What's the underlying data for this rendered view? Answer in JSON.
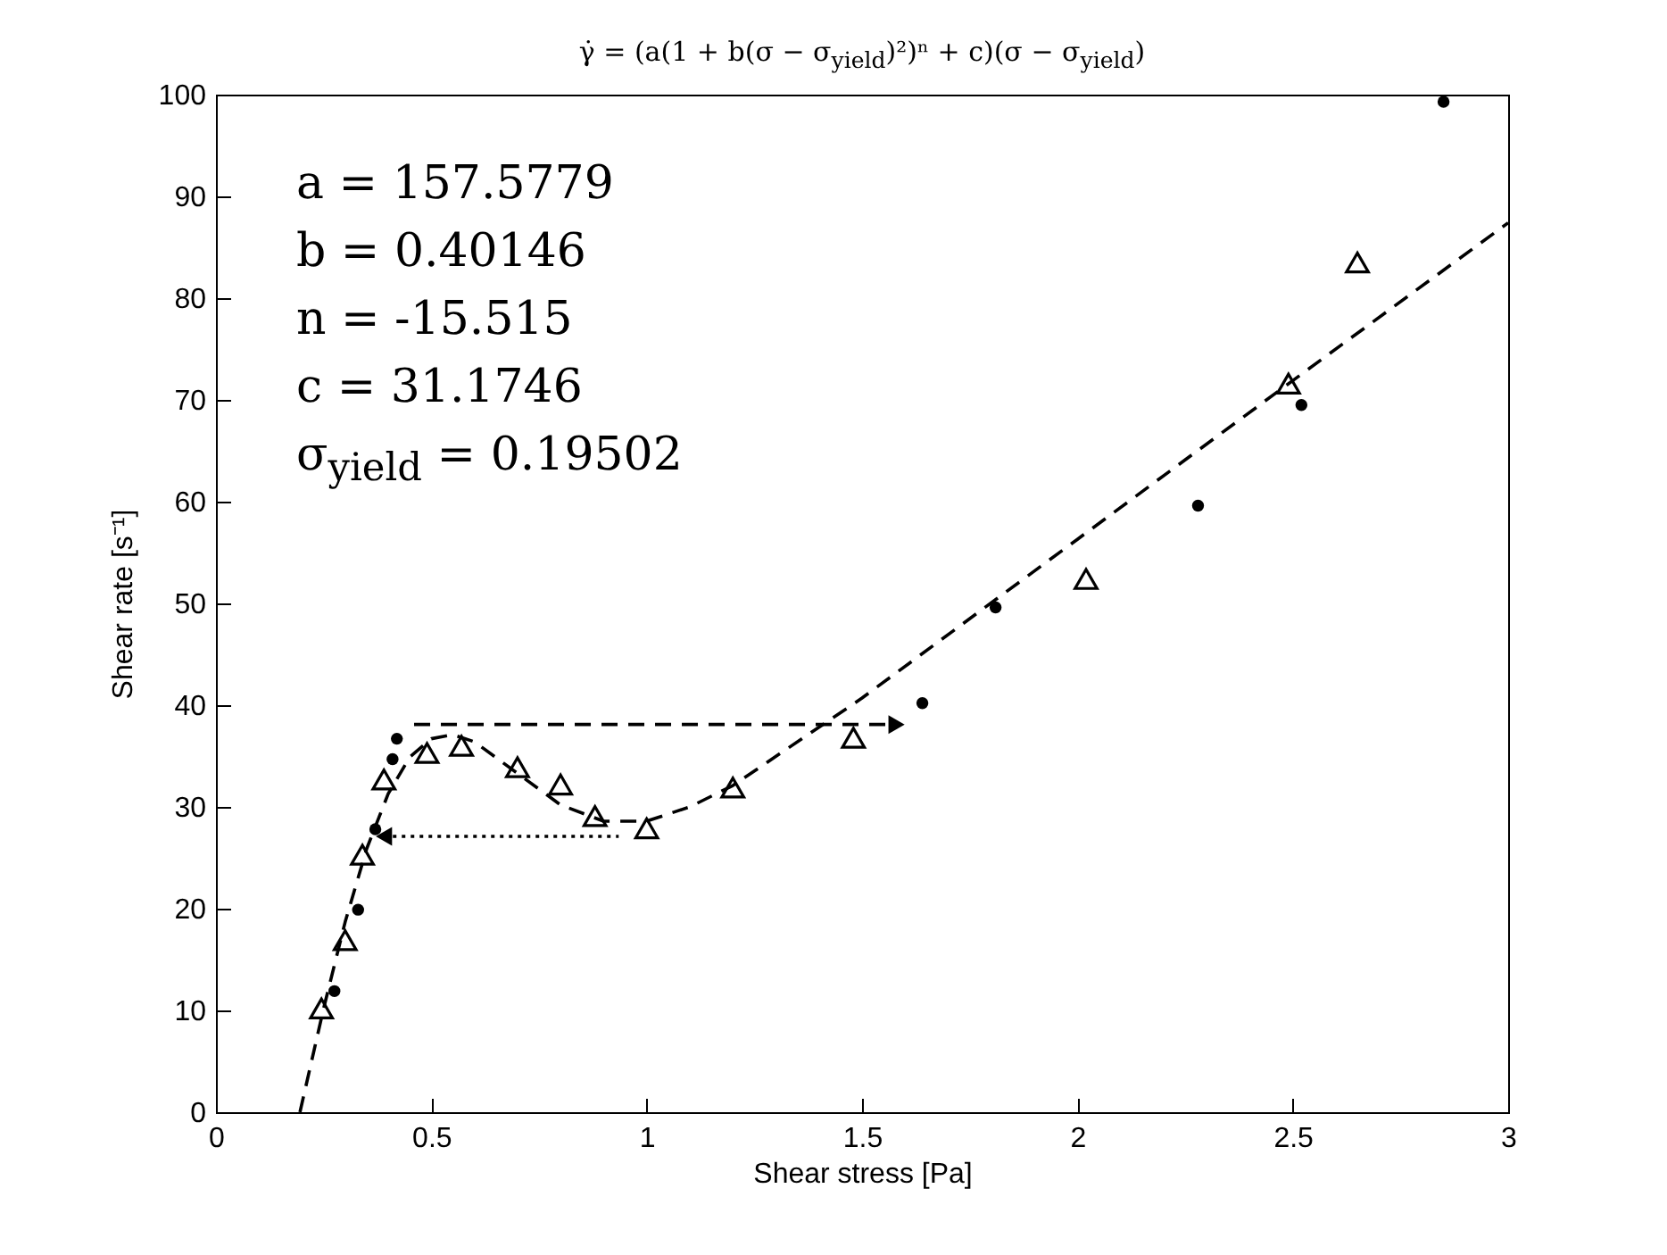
{
  "chart_data": {
    "type": "scatter",
    "title": "γ̇ = (a(1 + b(σ − σ$_{yield}$)²)ⁿ + c)(σ − σ$_{yield}$)",
    "xlabel": "Shear stress [Pa]",
    "ylabel": "Shear rate [s⁻¹]",
    "annotations": [
      "a = 157.5779",
      "b = 0.40146",
      "n = -15.515",
      "c = 31.1746",
      "σ$_{yield}$ = 0.19502"
    ],
    "xlim": [
      0,
      3
    ],
    "ylim": [
      0,
      100
    ],
    "xticks": [
      0,
      0.5,
      1,
      1.5,
      2,
      2.5,
      3
    ],
    "yticks": [
      0,
      10,
      20,
      30,
      40,
      50,
      60,
      70,
      80,
      90,
      100
    ],
    "grid": false,
    "series": [
      {
        "type": "scatter",
        "marker": "circle",
        "color": "#000000",
        "x": [
          0.275,
          0.33,
          0.37,
          0.41,
          0.42,
          1.64,
          1.81,
          2.28,
          2.52,
          2.85
        ],
        "values": [
          11.9,
          19.9,
          27.8,
          34.7,
          36.7,
          40.2,
          49.6,
          59.6,
          69.5,
          99.3
        ]
      },
      {
        "type": "scatter",
        "marker": "triangle",
        "color": "#000000",
        "x": [
          0.245,
          0.3,
          0.34,
          0.39,
          0.49,
          0.57,
          0.7,
          0.8,
          0.88,
          1.0,
          1.2,
          1.48,
          2.02,
          2.49,
          2.65
        ],
        "values": [
          10.2,
          16.9,
          25.3,
          32.7,
          35.3,
          36.0,
          33.9,
          32.2,
          29.1,
          27.9,
          31.9,
          36.8,
          52.4,
          71.6,
          83.5
        ]
      },
      {
        "type": "line",
        "line_style": "dashed",
        "color": "#000000",
        "x": [
          0.195,
          0.25,
          0.3,
          0.35,
          0.4,
          0.45,
          0.5,
          0.55,
          0.6,
          0.7,
          0.8,
          0.9,
          1.0,
          1.1,
          1.2,
          1.5,
          2,
          2.5,
          3
        ],
        "values": [
          0,
          10.2,
          18.7,
          25.9,
          31.3,
          34.9,
          36.7,
          37.1,
          36.4,
          33.3,
          30.2,
          28.6,
          28.6,
          30.0,
          32.1,
          40.7,
          56.3,
          71.9,
          87.4
        ]
      },
      {
        "type": "line",
        "line_style": "dashed",
        "color": "#000000",
        "x": [
          0.46,
          1.58
        ],
        "values": [
          38.1,
          38.1
        ]
      },
      {
        "type": "line",
        "line_style": "dotted",
        "color": "#000000",
        "x": [
          0.935,
          0.39
        ],
        "values": [
          27.1,
          27.1
        ]
      }
    ]
  }
}
